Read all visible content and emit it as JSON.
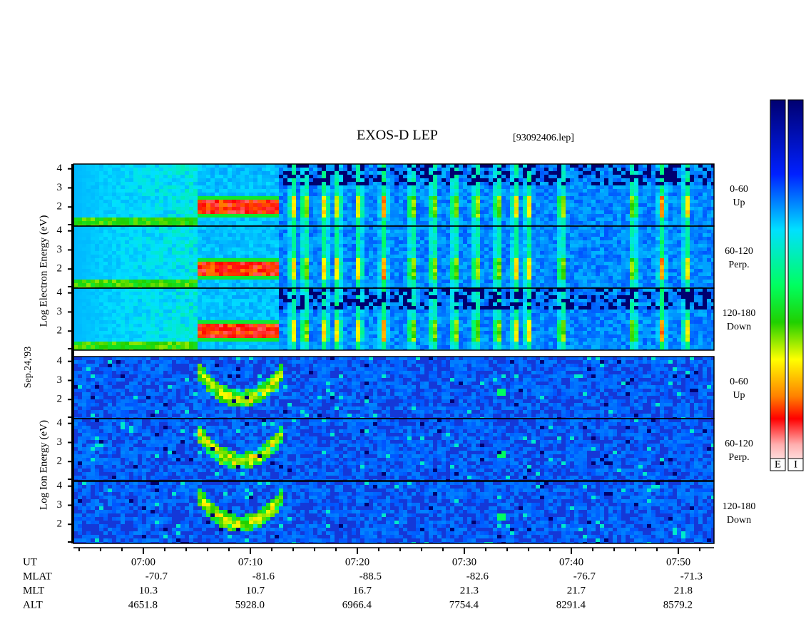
{
  "chart_data": {
    "type": "spectrogram",
    "title": "EXOS-D LEP",
    "file_label": "[93092406.lep]",
    "date_label": "Sep.24,'93",
    "xlim": [
      413.47,
      473.33
    ],
    "xticks": [
      {
        "value": 420,
        "label": "07:00"
      },
      {
        "value": 430,
        "label": "07:10"
      },
      {
        "value": 440,
        "label": "07:20"
      },
      {
        "value": 450,
        "label": "07:30"
      },
      {
        "value": 460,
        "label": "07:40"
      },
      {
        "value": 470,
        "label": "07:50"
      }
    ],
    "xminorticks": [
      414,
      416,
      418,
      422,
      424,
      426,
      428,
      432,
      434,
      436,
      438,
      442,
      444,
      446,
      448,
      452,
      454,
      456,
      458,
      462,
      464,
      466,
      468,
      472
    ],
    "ylim": [
      1,
      4.25
    ],
    "yticks": [
      2,
      3,
      4
    ],
    "groups": [
      {
        "label": "Log  Electron  Energy (eV)",
        "panels": [
          {
            "pitch": "0-60",
            "direction": "Up"
          },
          {
            "pitch": "60-120",
            "direction": "Perp."
          },
          {
            "pitch": "120-180",
            "direction": "Down"
          }
        ]
      },
      {
        "label": "Log  Ion  Energy (eV)",
        "panels": [
          {
            "pitch": "0-60",
            "direction": "Up"
          },
          {
            "pitch": "60-120",
            "direction": "Perp."
          },
          {
            "pitch": "120-180",
            "direction": "Down"
          }
        ]
      }
    ],
    "colorbar_labels": [
      "E",
      "I"
    ],
    "orbit": {
      "time_label": "UT",
      "rows": [
        {
          "label": "MLAT",
          "values": [
            -70.7,
            -81.6,
            -88.5,
            -82.6,
            -76.7,
            -71.3
          ]
        },
        {
          "label": "MLT",
          "values": [
            10.3,
            10.7,
            16.7,
            21.3,
            21.7,
            21.8
          ]
        },
        {
          "label": "ALT",
          "values": [
            4651.8,
            {
              "value": 5928,
              "label": "5928.0"
            },
            6966.4,
            7754.4,
            8291.4,
            8579.2
          ]
        }
      ]
    }
  }
}
